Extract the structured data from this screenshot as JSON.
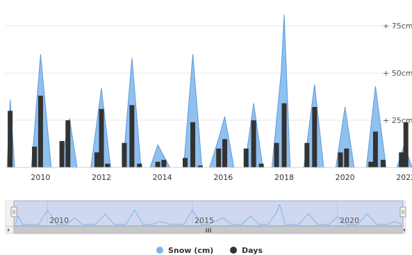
{
  "chart_data": {
    "type": "area+bar",
    "x": [
      2009.0,
      2009.5,
      2010.0,
      2010.5,
      2011.0,
      2011.5,
      2012.0,
      2012.5,
      2013.0,
      2013.5,
      2014.0,
      2014.5,
      2015.0,
      2015.5,
      2016.0,
      2016.5,
      2017.0,
      2017.5,
      2018.0,
      2018.5,
      2019.0,
      2019.5,
      2020.0,
      2020.5,
      2021.0,
      2021.5,
      2022.0
    ],
    "series": [
      {
        "name": "Snow (cm)",
        "kind": "area",
        "color": "#7cb5ec",
        "points": [
          [
            2008.9,
            0
          ],
          [
            2009.0,
            36
          ],
          [
            2009.15,
            0
          ],
          [
            2009.7,
            0
          ],
          [
            2010.0,
            60
          ],
          [
            2010.35,
            0
          ],
          [
            2010.65,
            0
          ],
          [
            2010.95,
            26
          ],
          [
            2011.2,
            0
          ],
          [
            2011.65,
            0
          ],
          [
            2012.0,
            42
          ],
          [
            2012.3,
            0
          ],
          [
            2012.7,
            0
          ],
          [
            2013.0,
            58
          ],
          [
            2013.3,
            0
          ],
          [
            2013.6,
            0
          ],
          [
            2013.85,
            12
          ],
          [
            2014.25,
            0
          ],
          [
            2014.7,
            0
          ],
          [
            2015.0,
            60
          ],
          [
            2015.3,
            0
          ],
          [
            2015.55,
            0
          ],
          [
            2015.9,
            18
          ],
          [
            2016.05,
            27
          ],
          [
            2016.35,
            0
          ],
          [
            2016.7,
            0
          ],
          [
            2017.0,
            34
          ],
          [
            2017.3,
            0
          ],
          [
            2017.6,
            0
          ],
          [
            2017.9,
            50
          ],
          [
            2018.0,
            81
          ],
          [
            2018.2,
            0
          ],
          [
            2018.65,
            0
          ],
          [
            2019.0,
            44
          ],
          [
            2019.3,
            0
          ],
          [
            2019.7,
            0
          ],
          [
            2020.0,
            32
          ],
          [
            2020.3,
            0
          ],
          [
            2020.7,
            0
          ],
          [
            2021.0,
            43
          ],
          [
            2021.35,
            0
          ],
          [
            2021.7,
            0
          ],
          [
            2021.95,
            12
          ],
          [
            2022.2,
            0
          ]
        ]
      },
      {
        "name": "Days",
        "kind": "column",
        "color": "#333333",
        "points": [
          [
            2009.0,
            30
          ],
          [
            2009.8,
            11
          ],
          [
            2010.0,
            38
          ],
          [
            2010.7,
            14
          ],
          [
            2010.9,
            25
          ],
          [
            2011.85,
            8
          ],
          [
            2012.0,
            31
          ],
          [
            2012.2,
            2
          ],
          [
            2012.75,
            13
          ],
          [
            2013.0,
            33
          ],
          [
            2013.25,
            2
          ],
          [
            2013.85,
            3
          ],
          [
            2014.05,
            4
          ],
          [
            2014.75,
            5
          ],
          [
            2015.0,
            24
          ],
          [
            2015.25,
            1
          ],
          [
            2015.85,
            10
          ],
          [
            2016.05,
            15
          ],
          [
            2016.75,
            10
          ],
          [
            2017.0,
            25
          ],
          [
            2017.25,
            2
          ],
          [
            2017.75,
            13
          ],
          [
            2018.0,
            34
          ],
          [
            2018.75,
            13
          ],
          [
            2019.0,
            32
          ],
          [
            2019.85,
            8
          ],
          [
            2020.05,
            10
          ],
          [
            2020.85,
            3
          ],
          [
            2021.0,
            19
          ],
          [
            2021.25,
            4
          ],
          [
            2021.85,
            8
          ],
          [
            2022.0,
            24
          ]
        ]
      }
    ],
    "x_axis": {
      "type": "year",
      "range": [
        2008.85,
        2022.2
      ],
      "tick_labels": [
        "2010",
        "2012",
        "2014",
        "2016",
        "2018",
        "2020",
        "2022"
      ]
    },
    "y_axis": {
      "position": "right",
      "range": [
        0,
        85
      ],
      "tick_values": [
        25,
        50,
        75
      ],
      "tick_labels": [
        "+ 25cm",
        "+ 50cm",
        "+ 75cm"
      ],
      "grid": true
    },
    "navigator": {
      "tick_labels": [
        "2010",
        "2015",
        "2020"
      ],
      "tick_years": [
        2010,
        2015,
        2020
      ],
      "handle_glyph": "III"
    },
    "legend": {
      "placement": "bottom-center",
      "items": [
        "Snow (cm)",
        "Days"
      ]
    }
  }
}
